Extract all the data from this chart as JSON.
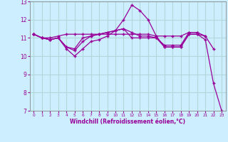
{
  "xlabel": "Windchill (Refroidissement éolien,°C)",
  "background_color": "#cceeff",
  "line_color": "#990099",
  "x_hours": [
    0,
    1,
    2,
    3,
    4,
    5,
    6,
    7,
    8,
    9,
    10,
    11,
    12,
    13,
    14,
    15,
    16,
    17,
    18,
    19,
    20,
    21,
    22,
    23
  ],
  "series": [
    [
      11.2,
      11.0,
      10.9,
      11.0,
      10.4,
      10.0,
      10.4,
      10.8,
      10.9,
      11.1,
      11.4,
      12.0,
      12.8,
      12.5,
      12.0,
      11.1,
      10.5,
      10.5,
      10.5,
      11.2,
      11.2,
      10.9,
      8.5,
      7.0
    ],
    [
      11.2,
      11.0,
      10.9,
      11.0,
      10.5,
      10.3,
      10.8,
      11.1,
      11.2,
      11.3,
      11.4,
      11.5,
      11.0,
      11.0,
      11.0,
      11.0,
      10.5,
      10.5,
      10.5,
      11.2,
      11.2,
      11.1,
      10.4,
      null
    ],
    [
      11.2,
      11.0,
      10.9,
      11.0,
      10.5,
      10.4,
      11.0,
      11.1,
      11.2,
      11.3,
      11.4,
      11.5,
      11.3,
      11.1,
      11.1,
      11.0,
      10.6,
      10.6,
      10.6,
      11.3,
      11.3,
      11.1,
      null,
      null
    ],
    [
      11.2,
      11.0,
      11.0,
      11.1,
      11.2,
      11.2,
      11.2,
      11.2,
      11.2,
      11.2,
      11.2,
      11.2,
      11.2,
      11.2,
      11.2,
      11.1,
      11.1,
      11.1,
      11.1,
      11.3,
      11.3,
      null,
      null,
      null
    ]
  ],
  "ylim": [
    7,
    13
  ],
  "xlim": [
    0,
    23
  ],
  "yticks": [
    7,
    8,
    9,
    10,
    11,
    12,
    13
  ],
  "xticks": [
    0,
    1,
    2,
    3,
    4,
    5,
    6,
    7,
    8,
    9,
    10,
    11,
    12,
    13,
    14,
    15,
    16,
    17,
    18,
    19,
    20,
    21,
    22,
    23
  ],
  "grid_color": "#b0d8d8",
  "spine_color": "#888888",
  "tick_color": "#990099",
  "xlabel_color": "#990099"
}
